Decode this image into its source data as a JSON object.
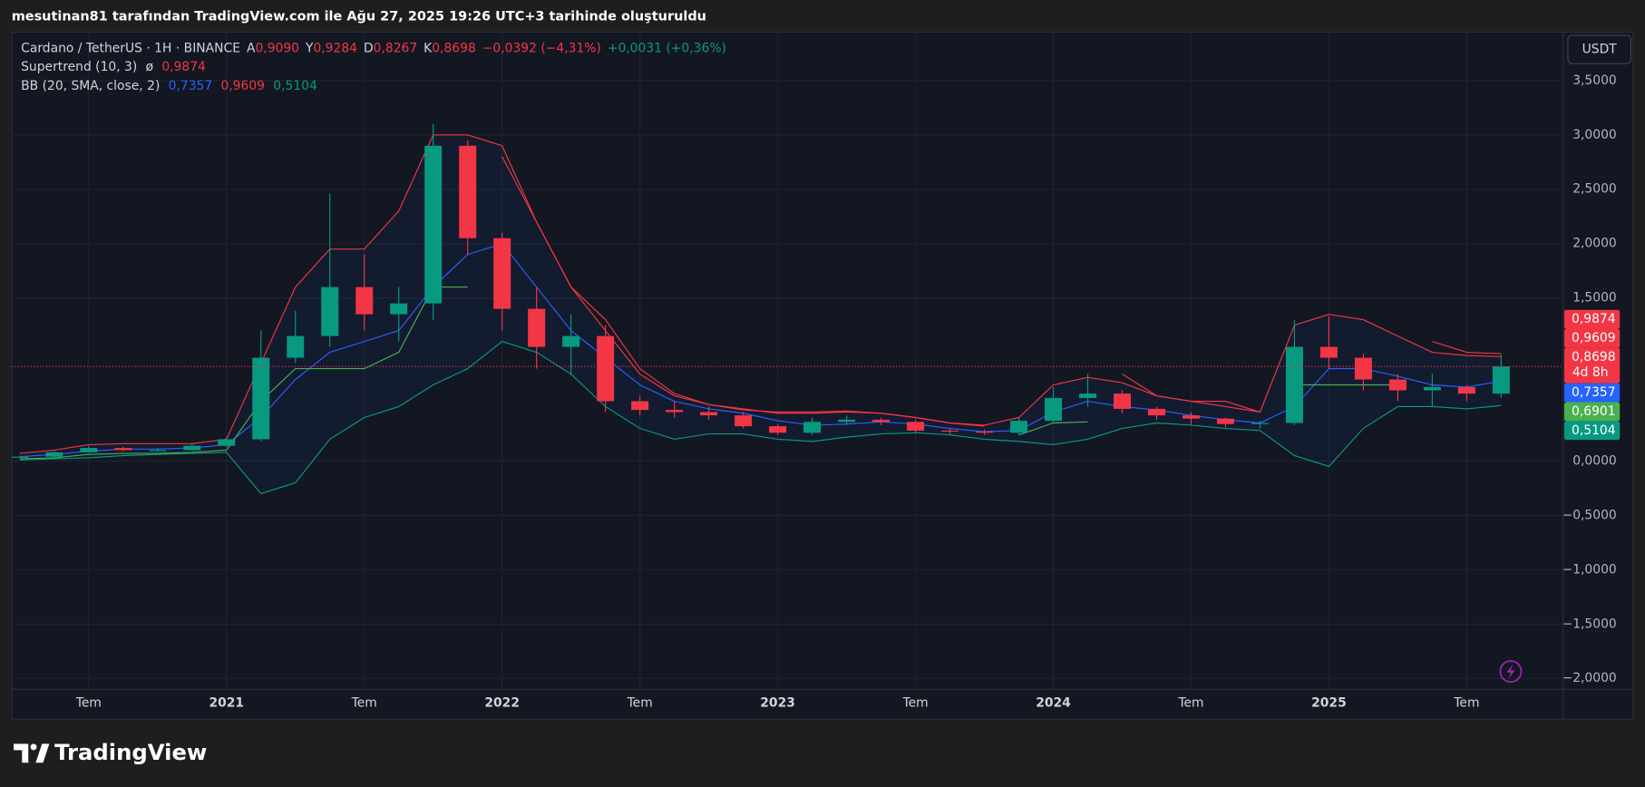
{
  "header": "mesutinan81 tarafından TradingView.com ile Ağu 27, 2025 19:26 UTC+3 tarihinde oluşturuldu",
  "legend": {
    "symbol": "Cardano / TetherUS · 1H · BINANCE",
    "ohlc": [
      {
        "key": "A",
        "value": "0,9090"
      },
      {
        "key": "Y",
        "value": "0,9284"
      },
      {
        "key": "D",
        "value": "0,8267"
      },
      {
        "key": "K",
        "value": "0,8698"
      }
    ],
    "value_color": "#f23645",
    "change": "−0,0392 (−4,31%)",
    "extra": "+0,0031 (+0,36%)",
    "extra_color": "#089981"
  },
  "indicators": [
    {
      "name": "Supertrend (10, 3)",
      "icon": "ø",
      "values": [
        {
          "text": "0,9874",
          "color": "#f23645"
        }
      ]
    },
    {
      "name": "BB (20, SMA, close, 2)",
      "values": [
        {
          "text": "0,7357",
          "color": "#2962ff"
        },
        {
          "text": "0,9609",
          "color": "#f23645"
        },
        {
          "text": "0,5104",
          "color": "#089981"
        }
      ]
    }
  ],
  "currency": "USDT",
  "brand": "TradingView",
  "chart_data": {
    "type": "candlestick",
    "x": [
      2020.25,
      2020.375,
      2020.5,
      2020.625,
      2020.75,
      2020.875,
      2021,
      2021.125,
      2021.25,
      2021.375,
      2021.5,
      2021.625,
      2021.75,
      2021.875,
      2022,
      2022.125,
      2022.25,
      2022.375,
      2022.5,
      2022.625,
      2022.75,
      2022.875,
      2023,
      2023.125,
      2023.25,
      2023.375,
      2023.5,
      2023.625,
      2023.75,
      2023.875,
      2024,
      2024.125,
      2024.25,
      2024.375,
      2024.5,
      2024.625,
      2024.75,
      2024.875,
      2025,
      2025.125,
      2025.25,
      2025.375,
      2025.5,
      2025.625
    ],
    "open": [
      0.035,
      0.04,
      0.08,
      0.12,
      0.1,
      0.1,
      0.14,
      0.2,
      0.95,
      1.15,
      1.6,
      1.35,
      1.45,
      2.9,
      2.05,
      1.4,
      1.05,
      1.15,
      0.55,
      0.47,
      0.45,
      0.42,
      0.32,
      0.26,
      0.36,
      0.38,
      0.36,
      0.28,
      0.27,
      0.26,
      0.37,
      0.58,
      0.62,
      0.48,
      0.42,
      0.39,
      0.34,
      0.35,
      1.05,
      0.95,
      0.75,
      0.65,
      0.68,
      0.62
    ],
    "high": [
      0.05,
      0.09,
      0.14,
      0.13,
      0.12,
      0.16,
      0.22,
      1.2,
      1.38,
      2.46,
      1.9,
      1.6,
      3.1,
      2.95,
      2.1,
      1.6,
      1.35,
      1.25,
      0.6,
      0.55,
      0.5,
      0.45,
      0.34,
      0.4,
      0.42,
      0.4,
      0.38,
      0.3,
      0.29,
      0.4,
      0.68,
      0.8,
      0.65,
      0.5,
      0.45,
      0.4,
      0.37,
      1.3,
      1.33,
      0.99,
      0.8,
      0.8,
      0.7,
      0.98
    ],
    "low": [
      0.03,
      0.035,
      0.075,
      0.09,
      0.09,
      0.095,
      0.13,
      0.18,
      0.9,
      1.05,
      1.2,
      1.1,
      1.3,
      1.9,
      1.2,
      0.85,
      0.8,
      0.45,
      0.42,
      0.4,
      0.38,
      0.3,
      0.24,
      0.24,
      0.33,
      0.33,
      0.26,
      0.24,
      0.24,
      0.24,
      0.35,
      0.5,
      0.44,
      0.38,
      0.33,
      0.31,
      0.3,
      0.33,
      0.85,
      0.65,
      0.55,
      0.5,
      0.55,
      0.58
    ],
    "close": [
      0.04,
      0.08,
      0.12,
      0.1,
      0.1,
      0.14,
      0.2,
      0.95,
      1.15,
      1.6,
      1.35,
      1.45,
      2.9,
      2.05,
      1.4,
      1.05,
      1.15,
      0.55,
      0.47,
      0.45,
      0.42,
      0.32,
      0.26,
      0.36,
      0.38,
      0.36,
      0.28,
      0.27,
      0.26,
      0.37,
      0.58,
      0.62,
      0.48,
      0.42,
      0.39,
      0.34,
      0.35,
      1.05,
      0.95,
      0.75,
      0.65,
      0.68,
      0.62,
      0.87
    ],
    "up_color": "#089981",
    "down_color": "#f23645",
    "bb_upper": [
      0.07,
      0.1,
      0.15,
      0.16,
      0.16,
      0.16,
      0.2,
      0.9,
      1.6,
      1.95,
      1.95,
      2.3,
      3.0,
      3.0,
      2.9,
      2.2,
      1.6,
      1.2,
      0.8,
      0.6,
      0.52,
      0.48,
      0.44,
      0.44,
      0.45,
      0.44,
      0.4,
      0.35,
      0.33,
      0.4,
      0.7,
      0.77,
      0.72,
      0.6,
      0.55,
      0.55,
      0.45,
      1.25,
      1.35,
      1.3,
      1.15,
      1.0,
      0.97,
      0.9609
    ],
    "bb_basis": [
      0.04,
      0.06,
      0.09,
      0.11,
      0.11,
      0.12,
      0.15,
      0.4,
      0.75,
      1.0,
      1.1,
      1.2,
      1.6,
      1.9,
      2.0,
      1.6,
      1.2,
      0.95,
      0.7,
      0.55,
      0.48,
      0.44,
      0.37,
      0.33,
      0.34,
      0.36,
      0.34,
      0.3,
      0.27,
      0.28,
      0.45,
      0.55,
      0.5,
      0.47,
      0.42,
      0.38,
      0.35,
      0.5,
      0.85,
      0.85,
      0.78,
      0.7,
      0.68,
      0.7357
    ],
    "bb_lower": [
      0.01,
      0.02,
      0.03,
      0.05,
      0.06,
      0.07,
      0.08,
      -0.3,
      -0.2,
      0.2,
      0.4,
      0.5,
      0.7,
      0.85,
      1.1,
      1.0,
      0.8,
      0.5,
      0.3,
      0.2,
      0.25,
      0.25,
      0.2,
      0.18,
      0.22,
      0.25,
      0.26,
      0.24,
      0.2,
      0.18,
      0.15,
      0.2,
      0.3,
      0.35,
      0.33,
      0.3,
      0.28,
      0.05,
      -0.05,
      0.3,
      0.5,
      0.5,
      0.48,
      0.5104
    ],
    "bb_upper_color": "#f23645",
    "bb_basis_color": "#2962ff",
    "bb_lower_color": "#089981",
    "supertrend_up": [
      0.02,
      0.03,
      0.06,
      0.07,
      0.07,
      0.08,
      0.1,
      0.55,
      0.85,
      0.85,
      0.85,
      1.0,
      1.6,
      1.6,
      null,
      null,
      null,
      null,
      null,
      null,
      null,
      null,
      null,
      null,
      null,
      null,
      null,
      null,
      null,
      0.24,
      0.35,
      0.36,
      null,
      null,
      null,
      null,
      null,
      0.7,
      0.7,
      0.7,
      0.7,
      null,
      null,
      null
    ],
    "supertrend_down": [
      null,
      null,
      null,
      null,
      null,
      null,
      null,
      null,
      null,
      null,
      null,
      null,
      null,
      null,
      2.8,
      2.2,
      1.6,
      1.3,
      0.85,
      0.62,
      0.52,
      0.47,
      0.45,
      0.45,
      0.46,
      0.44,
      0.4,
      0.35,
      0.32,
      null,
      null,
      null,
      0.8,
      0.6,
      0.55,
      0.5,
      0.45,
      null,
      null,
      null,
      null,
      1.1,
      1.0,
      0.9874
    ],
    "supertrend_up_color": "#4caf50",
    "supertrend_down_color": "#f23645",
    "xlim": [
      2020.22,
      2025.85
    ],
    "ylim": [
      -2.1,
      3.95
    ],
    "xticks": [
      {
        "value": 2020.5,
        "label": "Tem"
      },
      2021,
      {
        "value": 2021.5,
        "label": "Tem"
      },
      2022,
      {
        "value": 2022.5,
        "label": "Tem"
      },
      2023,
      {
        "value": 2023.5,
        "label": "Tem"
      },
      2024,
      {
        "value": 2024.5,
        "label": "Tem"
      },
      2025,
      {
        "value": 2025.5,
        "label": "Tem"
      }
    ],
    "yticks": [
      {
        "value": 3.5,
        "label": "3,5000"
      },
      {
        "value": 3,
        "label": "3,0000"
      },
      {
        "value": 2.5,
        "label": "2,5000"
      },
      {
        "value": 2,
        "label": "2,0000"
      },
      {
        "value": 1.5,
        "label": "1,5000"
      },
      {
        "value": 0,
        "label": "0,0000"
      },
      {
        "value": -0.5,
        "label": "−0,5000"
      },
      {
        "value": -1,
        "label": "−1,0000"
      },
      {
        "value": -1.5,
        "label": "−1,5000"
      },
      {
        "value": -2,
        "label": "−2,0000"
      }
    ],
    "grid": true,
    "price_labels": [
      {
        "value": 0.9874,
        "label": "0,9874",
        "color": "#f23645"
      },
      {
        "value": 0.9609,
        "label": "0,9609",
        "color": "#f23645"
      },
      {
        "value": 0.8698,
        "label": "0,8698",
        "sublabel": "4d 8h",
        "color": "#f23645"
      },
      {
        "value": 0.7357,
        "label": "0,7357",
        "color": "#2962ff"
      },
      {
        "value": 0.6901,
        "label": "0,6901",
        "color": "#4caf50"
      },
      {
        "value": 0.5104,
        "label": "0,5104",
        "color": "#089981"
      }
    ]
  }
}
